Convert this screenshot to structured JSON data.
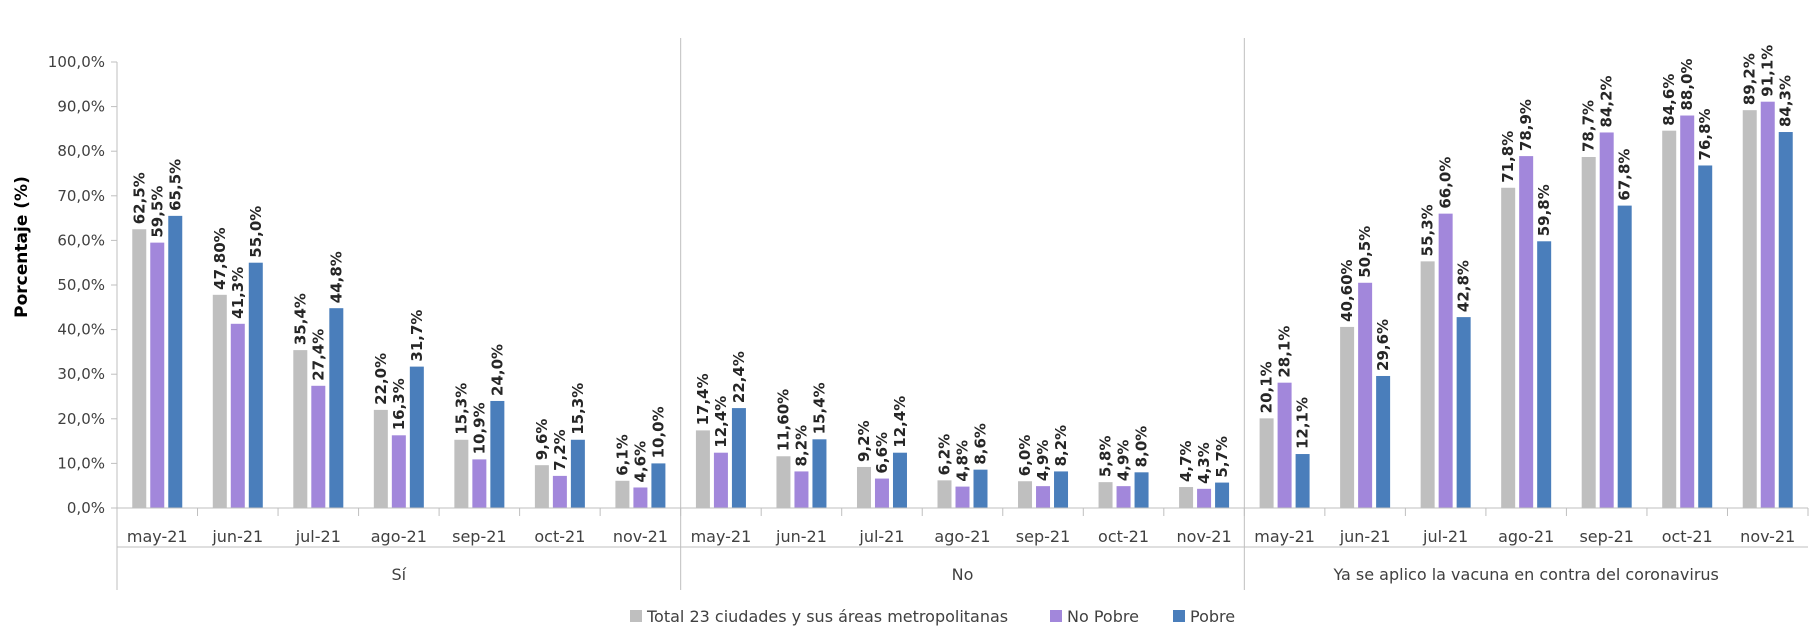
{
  "chart_data": {
    "type": "bar",
    "ylabel": "Porcentaje (%)",
    "ylim": [
      0,
      100
    ],
    "yticks": [
      "0,0%",
      "10,0%",
      "20,0%",
      "30,0%",
      "40,0%",
      "50,0%",
      "60,0%",
      "70,0%",
      "80,0%",
      "90,0%",
      "100,0%"
    ],
    "ytick_values": [
      0,
      10,
      20,
      30,
      40,
      50,
      60,
      70,
      80,
      90,
      100
    ],
    "grid": false,
    "legend_position": "bottom",
    "groups": [
      {
        "label": "Sí",
        "categories": [
          "may-21",
          "jun-21",
          "jul-21",
          "ago-21",
          "sep-21",
          "oct-21",
          "nov-21"
        ],
        "series": [
          {
            "name": "Total 23 ciudades y sus áreas metropolitanas",
            "values": [
              62.5,
              47.8,
              35.4,
              22.0,
              15.3,
              9.6,
              6.1
            ],
            "labels": [
              "62,5%",
              "47,80%",
              "35,4%",
              "22,0%",
              "15,3%",
              "9,6%",
              "6,1%"
            ]
          },
          {
            "name": "No Pobre",
            "values": [
              59.5,
              41.3,
              27.4,
              16.3,
              10.9,
              7.2,
              4.6
            ],
            "labels": [
              "59,5%",
              "41,3%",
              "27,4%",
              "16,3%",
              "10,9%",
              "7,2%",
              "4,6%"
            ]
          },
          {
            "name": "Pobre",
            "values": [
              65.5,
              55.0,
              44.8,
              31.7,
              24.0,
              15.3,
              10.0
            ],
            "labels": [
              "65,5%",
              "55,0%",
              "44,8%",
              "31,7%",
              "24,0%",
              "15,3%",
              "10,0%"
            ]
          }
        ]
      },
      {
        "label": "No",
        "categories": [
          "may-21",
          "jun-21",
          "jul-21",
          "ago-21",
          "sep-21",
          "oct-21",
          "nov-21"
        ],
        "series": [
          {
            "name": "Total 23 ciudades y sus áreas metropolitanas",
            "values": [
              17.4,
              11.6,
              9.2,
              6.2,
              6.0,
              5.8,
              4.7
            ],
            "labels": [
              "17,4%",
              "11,60%",
              "9,2%",
              "6,2%",
              "6,0%",
              "5,8%",
              "4,7%"
            ]
          },
          {
            "name": "No Pobre",
            "values": [
              12.4,
              8.2,
              6.6,
              4.8,
              4.9,
              4.9,
              4.3
            ],
            "labels": [
              "12,4%",
              "8,2%",
              "6,6%",
              "4,8%",
              "4,9%",
              "4,9%",
              "4,3%"
            ]
          },
          {
            "name": "Pobre",
            "values": [
              22.4,
              15.4,
              12.4,
              8.6,
              8.2,
              8.0,
              5.7
            ],
            "labels": [
              "22,4%",
              "15,4%",
              "12,4%",
              "8,6%",
              "8,2%",
              "8,0%",
              "5,7%"
            ]
          }
        ]
      },
      {
        "label": "Ya se aplico la vacuna en contra del coronavirus",
        "categories": [
          "may-21",
          "jun-21",
          "jul-21",
          "ago-21",
          "sep-21",
          "oct-21",
          "nov-21"
        ],
        "series": [
          {
            "name": "Total 23 ciudades y sus áreas metropolitanas",
            "values": [
              20.1,
              40.6,
              55.3,
              71.8,
              78.7,
              84.6,
              89.2
            ],
            "labels": [
              "20,1%",
              "40,60%",
              "55,3%",
              "71,8%",
              "78,7%",
              "84,6%",
              "89,2%"
            ]
          },
          {
            "name": "No Pobre",
            "values": [
              28.1,
              50.5,
              66.0,
              78.9,
              84.2,
              88.0,
              91.1
            ],
            "labels": [
              "28,1%",
              "50,5%",
              "66,0%",
              "78,9%",
              "84,2%",
              "88,0%",
              "91,1%"
            ]
          },
          {
            "name": "Pobre",
            "values": [
              12.1,
              29.6,
              42.8,
              59.8,
              67.8,
              76.8,
              84.3
            ],
            "labels": [
              "12,1%",
              "29,6%",
              "42,8%",
              "59,8%",
              "67,8%",
              "76,8%",
              "84,3%"
            ]
          }
        ]
      }
    ],
    "legend": [
      {
        "name": "Total 23 ciudades y sus áreas metropolitanas",
        "color": "#bfbfbf"
      },
      {
        "name": "No Pobre",
        "color": "#a287db"
      },
      {
        "name": "Pobre",
        "color": "#4a7ebb"
      }
    ]
  }
}
